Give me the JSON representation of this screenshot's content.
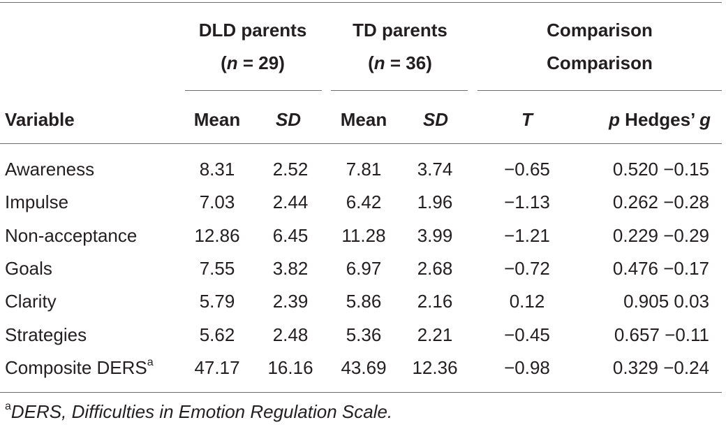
{
  "header": {
    "dld_group": "DLD parents",
    "dld_n_prefix": "(",
    "n_symbol": "n",
    "dld_n_suffix": " = 29)",
    "td_group": "TD parents",
    "td_n_prefix": "(",
    "td_n_suffix": " = 36)",
    "comparison_line1": "Comparison",
    "comparison_line2": "Comparison"
  },
  "columns": {
    "variable": "Variable",
    "dld_mean": "Mean",
    "dld_sd": "SD",
    "td_mean": "Mean",
    "td_sd": "SD",
    "t": "T",
    "p": "p",
    "hedges_prefix": " Hedges’ ",
    "hedges_g": "g"
  },
  "rows": [
    {
      "variable": "Awareness",
      "sup": "",
      "dld_mean": "8.31",
      "dld_sd": "2.52",
      "td_mean": "7.81",
      "td_sd": "3.74",
      "t": "−0.65",
      "p_g": "0.520 −0.15"
    },
    {
      "variable": "Impulse",
      "sup": "",
      "dld_mean": "7.03",
      "dld_sd": "2.44",
      "td_mean": "6.42",
      "td_sd": "1.96",
      "t": "−1.13",
      "p_g": "0.262 −0.28"
    },
    {
      "variable": "Non-acceptance",
      "sup": "",
      "dld_mean": "12.86",
      "dld_sd": "6.45",
      "td_mean": "11.28",
      "td_sd": "3.99",
      "t": "−1.21",
      "p_g": "0.229 −0.29"
    },
    {
      "variable": "Goals",
      "sup": "",
      "dld_mean": "7.55",
      "dld_sd": "3.82",
      "td_mean": "6.97",
      "td_sd": "2.68",
      "t": "−0.72",
      "p_g": "0.476 −0.17"
    },
    {
      "variable": "Clarity",
      "sup": "",
      "dld_mean": "5.79",
      "dld_sd": "2.39",
      "td_mean": "5.86",
      "td_sd": "2.16",
      "t": "0.12",
      "p_g": "0.905 0.03"
    },
    {
      "variable": "Strategies",
      "sup": "",
      "dld_mean": "5.62",
      "dld_sd": "2.48",
      "td_mean": "5.36",
      "td_sd": "2.21",
      "t": "−0.45",
      "p_g": "0.657 −0.11"
    },
    {
      "variable": "Composite DERS",
      "sup": "a",
      "dld_mean": "47.17",
      "dld_sd": "16.16",
      "td_mean": "43.69",
      "td_sd": "12.36",
      "t": "−0.98",
      "p_g": "0.329 −0.24"
    }
  ],
  "footnote": {
    "marker": "a",
    "text": "DERS, Difficulties in Emotion Regulation Scale."
  }
}
